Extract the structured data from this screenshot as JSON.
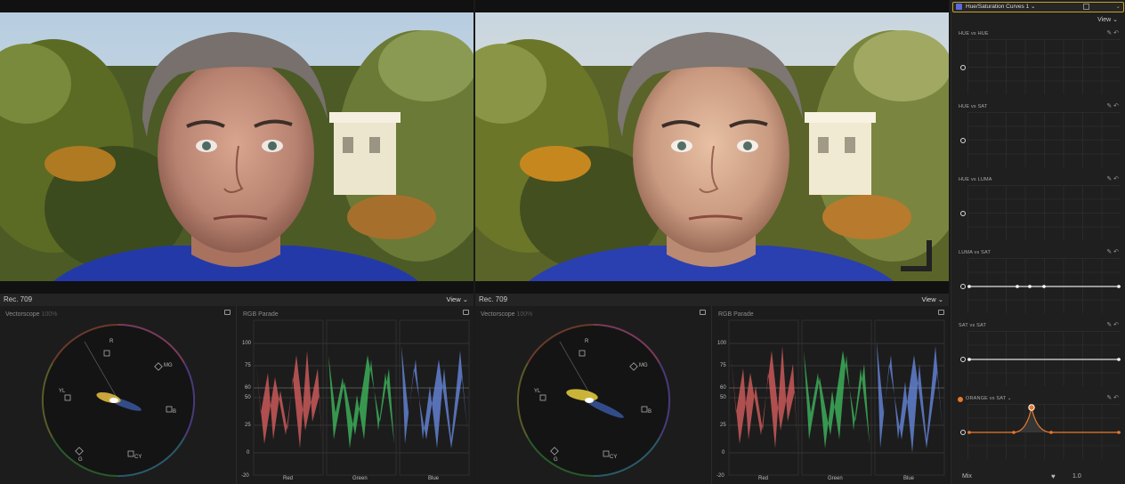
{
  "viewers": [
    {
      "id": "original",
      "scope_label": "Rec. 709",
      "view_label": "View ⌄",
      "vectorscope": {
        "title": "Vectorscope",
        "zoom": "100%",
        "targets": [
          "R",
          "MG",
          "B",
          "CY",
          "G",
          "YL"
        ]
      },
      "parade": {
        "title": "RGB Parade",
        "ticks": [
          "100",
          "75",
          "60",
          "50",
          "25",
          "0",
          "-20"
        ],
        "channels": [
          "Red",
          "Green",
          "Blue"
        ]
      }
    },
    {
      "id": "graded",
      "scope_label": "Rec. 709",
      "view_label": "View ⌄",
      "vectorscope": {
        "title": "Vectorscope",
        "zoom": "100%",
        "targets": [
          "R",
          "MG",
          "B",
          "CY",
          "G",
          "YL"
        ]
      },
      "parade": {
        "title": "RGB Parade",
        "ticks": [
          "100",
          "75",
          "60",
          "50",
          "25",
          "0",
          "-20"
        ],
        "channels": [
          "Red",
          "Green",
          "Blue"
        ]
      }
    }
  ],
  "panel": {
    "effect_title": "Hue/Saturation Curves 1 ⌄",
    "view_label": "View ⌄",
    "curves": [
      {
        "title": "HUE vs HUE",
        "type": "rainbow"
      },
      {
        "title": "HUE vs SAT",
        "type": "rainbow"
      },
      {
        "title": "HUE vs LUMA",
        "type": "rainbow"
      },
      {
        "title": "LUMA vs SAT",
        "type": "points"
      },
      {
        "title": "SAT vs SAT",
        "type": "flat"
      },
      {
        "title": "ORANGE vs SAT ⌄",
        "type": "orange"
      }
    ],
    "mix_label": "Mix",
    "mix_value": "1.0"
  },
  "colors": {
    "accent": "#c8a027",
    "orange": "#e8772a",
    "red": "#ff5a5a",
    "green": "#3fe35a",
    "blue": "#6ea6ff"
  }
}
